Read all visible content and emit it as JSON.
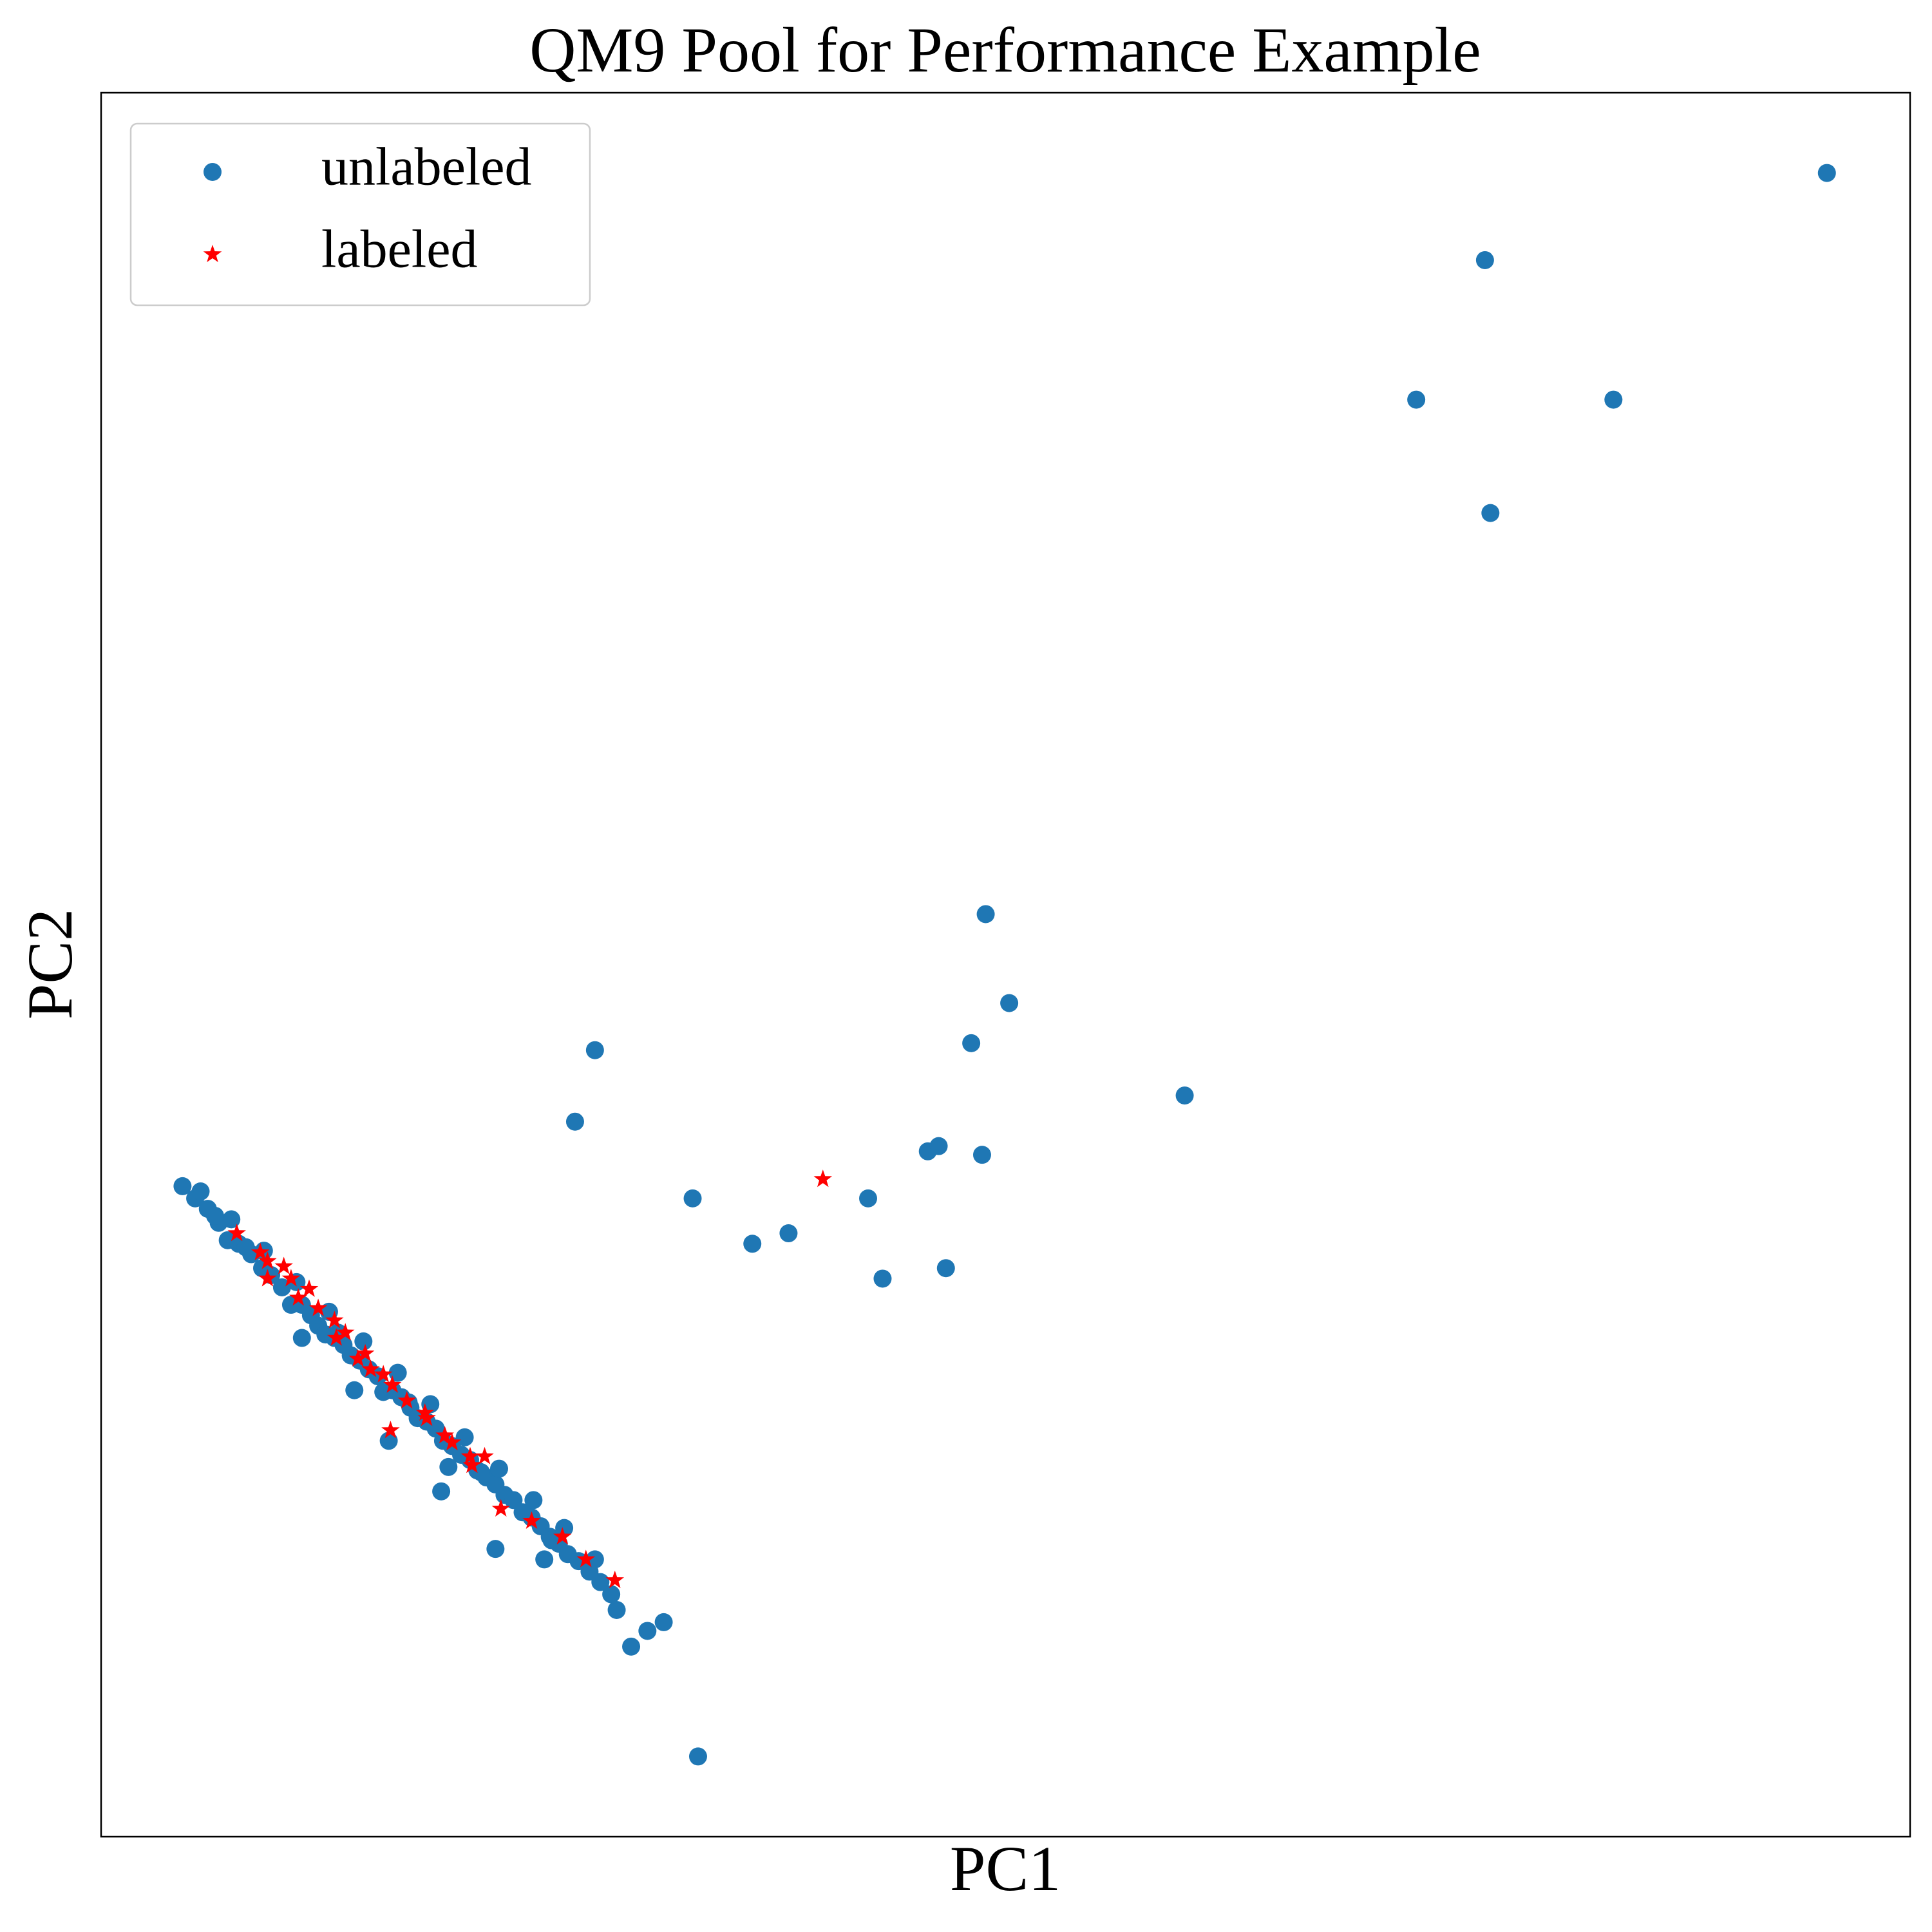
{
  "chart_data": {
    "type": "scatter",
    "title": "QM9 Pool for Performance Example",
    "x_label": "PC1",
    "y_label": "PC2",
    "xlim": [
      0,
      100
    ],
    "ylim": [
      0,
      100
    ],
    "legend": "upper left",
    "series": [
      {
        "name": "unlabeled",
        "color": "#1f77b4",
        "marker": "circle",
        "x": [
          95.4,
          76.5,
          72.7,
          83.6,
          76.8,
          48.9,
          50.2,
          48.1,
          27.3,
          59.9,
          26.2,
          45.7,
          46.3,
          48.7,
          32.7,
          42.4,
          36.0,
          38.0,
          43.2,
          46.7,
          33.0,
          29.3,
          31.1,
          30.2,
          28.5,
          4.5,
          5.2,
          5.9,
          6.5,
          7.0,
          7.6,
          8.3,
          8.9,
          9.4,
          10.0,
          10.5,
          11.1,
          11.6,
          12.0,
          12.4,
          12.9,
          13.4,
          13.8,
          14.3,
          14.8,
          15.3,
          15.6,
          16.1,
          16.6,
          17.1,
          17.5,
          18.0,
          18.5,
          18.9,
          19.4,
          19.9,
          20.4,
          20.8,
          21.3,
          21.8,
          22.3,
          22.8,
          23.3,
          23.8,
          24.3,
          24.8,
          25.3,
          25.8,
          26.4,
          27.0,
          27.6,
          28.2,
          11.1,
          14.0,
          15.9,
          18.8,
          21.8,
          24.5,
          19.2,
          5.5,
          7.2,
          9.0,
          10.8,
          12.6,
          14.5,
          16.4,
          18.2,
          20.1,
          22.0,
          23.9,
          25.6,
          27.3,
          6.3,
          8.0,
          13.1,
          17.0,
          21.0,
          24.9
        ],
        "values": [
          95.4,
          90.4,
          82.4,
          82.4,
          75.9,
          52.9,
          47.8,
          45.5,
          45.1,
          42.5,
          41.0,
          39.3,
          39.6,
          39.1,
          36.6,
          36.6,
          34.0,
          34.6,
          32.0,
          32.6,
          4.6,
          10.9,
          12.3,
          11.8,
          13.0,
          37.3,
          36.6,
          36.0,
          35.2,
          34.2,
          34.0,
          33.4,
          32.6,
          32.2,
          31.5,
          30.5,
          30.5,
          29.9,
          29.3,
          28.8,
          28.6,
          28.2,
          27.6,
          27.3,
          26.8,
          26.4,
          25.5,
          25.6,
          25.2,
          24.6,
          24.0,
          23.8,
          23.4,
          22.7,
          22.4,
          21.9,
          21.6,
          21.0,
          20.6,
          20.2,
          19.6,
          19.3,
          18.6,
          18.3,
          17.8,
          17.2,
          16.8,
          16.2,
          15.8,
          15.2,
          14.6,
          13.9,
          28.6,
          25.6,
          22.7,
          19.8,
          16.5,
          15.9,
          21.2,
          37.0,
          35.4,
          33.6,
          31.8,
          30.1,
          28.4,
          26.6,
          24.8,
          22.9,
          21.1,
          19.3,
          17.7,
          15.9,
          35.6,
          33.8,
          28.9,
          24.9,
          20.9,
          17.0
        ]
      },
      {
        "name": "labeled",
        "color": "#ff0000",
        "marker": "star",
        "x": [
          7.5,
          8.8,
          9.2,
          9.2,
          10.1,
          10.5,
          10.9,
          11.5,
          12.0,
          12.9,
          13.0,
          13.5,
          14.2,
          14.6,
          14.9,
          15.6,
          16.1,
          16.9,
          16.0,
          17.9,
          18.0,
          19.0,
          19.4,
          20.4,
          21.2,
          20.5,
          22.1,
          23.8,
          25.5,
          26.8,
          28.4,
          39.9
        ],
        "values": [
          34.6,
          33.5,
          33.0,
          32.0,
          32.7,
          32.0,
          30.9,
          31.4,
          30.3,
          29.6,
          28.6,
          28.9,
          27.4,
          27.7,
          26.8,
          26.5,
          25.9,
          25.0,
          23.3,
          24.3,
          24.0,
          23.0,
          22.6,
          21.8,
          21.8,
          21.3,
          18.8,
          18.1,
          17.2,
          15.9,
          14.7,
          37.7
        ]
      }
    ]
  }
}
